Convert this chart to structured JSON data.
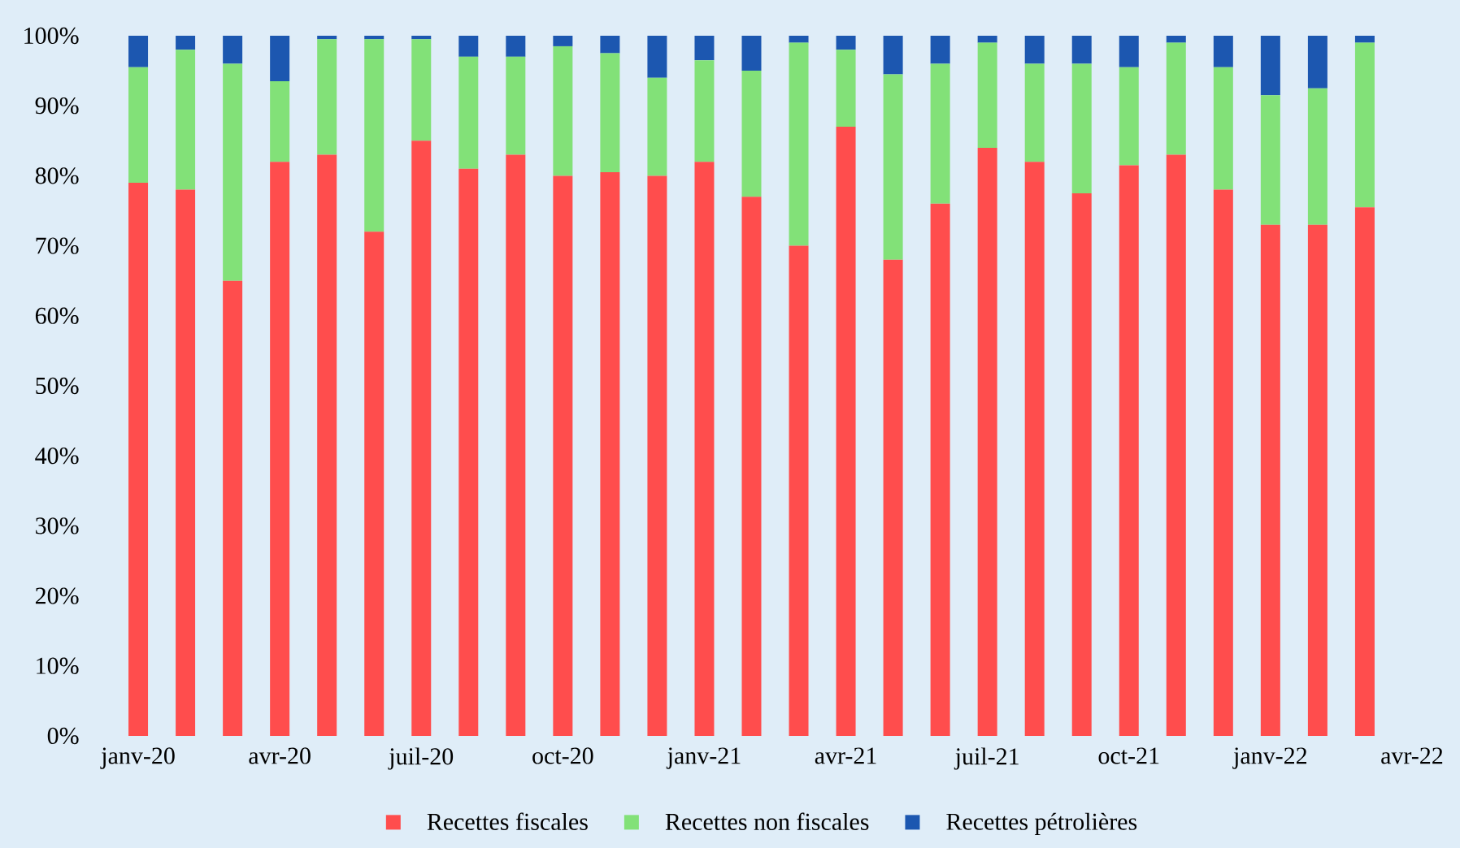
{
  "chart_data": {
    "type": "bar",
    "stacked": true,
    "categories": [
      "janv-20",
      null,
      null,
      "avr-20",
      null,
      null,
      "juil-20",
      null,
      null,
      "oct-20",
      null,
      null,
      "janv-21",
      null,
      null,
      "avr-21",
      null,
      null,
      "juil-21",
      null,
      null,
      "oct-21",
      null,
      null,
      "janv-22",
      null,
      null,
      "avr-22"
    ],
    "series": [
      {
        "name": "Recettes fiscales",
        "color": "#ff4d4d",
        "values": [
          79,
          78,
          65,
          82,
          83,
          72,
          85,
          81,
          83,
          80,
          80.5,
          80,
          82,
          77,
          70,
          87,
          68,
          76,
          84,
          82,
          77.5,
          81.5,
          83,
          78,
          73,
          73,
          75.5,
          null
        ]
      },
      {
        "name": "Recettes non fiscales",
        "color": "#82e178",
        "values": [
          16.5,
          20,
          31,
          11.5,
          16.5,
          27.5,
          14.5,
          16,
          14,
          18.5,
          17,
          14,
          14.5,
          18,
          29,
          11,
          26.5,
          20,
          15,
          14,
          18.5,
          14,
          16,
          17.5,
          18.5,
          19.5,
          23.5,
          null
        ]
      },
      {
        "name": "Recettes pétrolières",
        "color": "#1c57b0",
        "values": [
          4.5,
          2,
          4,
          6.5,
          0.5,
          0.5,
          0.5,
          3,
          3,
          1.5,
          2.5,
          6,
          3.5,
          5,
          1,
          2,
          5.5,
          4,
          1,
          4,
          4,
          4.5,
          1,
          4.5,
          8.5,
          7.5,
          1,
          null
        ]
      }
    ],
    "ylim": [
      0,
      100
    ],
    "yticks": [
      {
        "value": 0,
        "label": "0%"
      },
      {
        "value": 10,
        "label": "10%"
      },
      {
        "value": 20,
        "label": "20%"
      },
      {
        "value": 30,
        "label": "30%"
      },
      {
        "value": 40,
        "label": "40%"
      },
      {
        "value": 50,
        "label": "50%"
      },
      {
        "value": 60,
        "label": "60%"
      },
      {
        "value": 70,
        "label": "70%"
      },
      {
        "value": 80,
        "label": "80%"
      },
      {
        "value": 90,
        "label": "90%"
      },
      {
        "value": 100,
        "label": "100%"
      }
    ],
    "grid": false,
    "legend": "bottom"
  }
}
